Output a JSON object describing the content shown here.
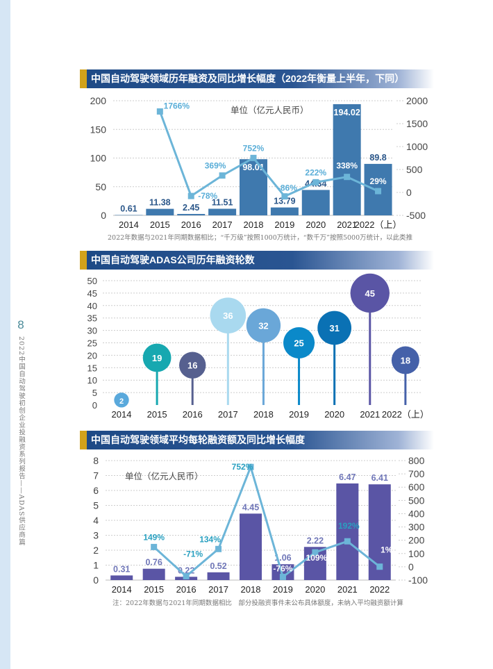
{
  "sidebar": {
    "page_number": "8",
    "report_title": "2022中国自动驾驶初创企业投融资系列报告——ADAS供应商篇"
  },
  "chart_data": [
    {
      "type": "bar+line",
      "title": "中国自动驾驶领域历年融资及同比增长幅度（2022年衡量上半年，下同）",
      "unit_label": "单位（亿元人民币）",
      "categories": [
        "2014",
        "2015",
        "2016",
        "2017",
        "2018",
        "2019",
        "2020",
        "2021",
        "2022（上）"
      ],
      "bar_values": [
        0.61,
        11.38,
        2.45,
        11.51,
        98.01,
        13.79,
        44.34,
        194.02,
        89.8
      ],
      "bar_labels": [
        "0.61",
        "11.38",
        "2.45",
        "11.51",
        "98.01",
        "13.79",
        "44.34",
        "194.02",
        "89.8"
      ],
      "line_values": [
        null,
        1766,
        -78,
        369,
        752,
        -86,
        222,
        338,
        29
      ],
      "line_labels": [
        "",
        "1766%",
        "-78%",
        "369%",
        "752%",
        "-86%",
        "222%",
        "338%",
        "29%"
      ],
      "ylim": [
        0,
        200
      ],
      "yticks": [
        "0",
        "50",
        "100",
        "150",
        "200"
      ],
      "y2lim": [
        -500,
        2000
      ],
      "y2ticks": [
        "-500",
        "0",
        "500",
        "1000",
        "1500",
        "2000"
      ],
      "grid": true,
      "colors": {
        "bar": "#3f79ae",
        "line": "#6cb5d8",
        "bar_label": "#2b578a",
        "line_label": "#5aaed8"
      },
      "footnote": "2022年数据与2021年同期数据相比；“千万级”按照1000万统计，“数千万”按照5000万统计，以此类推"
    },
    {
      "type": "lollipop",
      "title": "中国自动驾驶ADAS公司历年融资轮数",
      "categories": [
        "2014",
        "2015",
        "2016",
        "2017",
        "2018",
        "2019",
        "2020",
        "2021",
        "2022（上）"
      ],
      "values": [
        2,
        19,
        16,
        36,
        32,
        25,
        31,
        45,
        18
      ],
      "labels": [
        "2",
        "19",
        "16",
        "36",
        "32",
        "25",
        "31",
        "45",
        "18"
      ],
      "ylim": [
        0,
        50
      ],
      "yticks": [
        "0",
        "5",
        "10",
        "15",
        "20",
        "25",
        "30",
        "35",
        "40",
        "45",
        "50"
      ],
      "grid": true,
      "colors": [
        "#5aa9dc",
        "#17a8b0",
        "#56608f",
        "#a9d9ef",
        "#6aa7d8",
        "#0b89c9",
        "#0a71b4",
        "#5a55a5",
        "#4561a9"
      ]
    },
    {
      "type": "bar+line",
      "title": "中国自动驾驶领域平均每轮融资额及同比增长幅度",
      "unit_label": "单位（亿元人民币）",
      "categories": [
        "2014",
        "2015",
        "2016",
        "2017",
        "2018",
        "2019",
        "2020",
        "2021",
        "2022"
      ],
      "bar_values": [
        0.31,
        0.76,
        0.22,
        0.52,
        4.45,
        1.06,
        2.22,
        6.47,
        6.41
      ],
      "bar_labels": [
        "0.31",
        "0.76",
        "0.22",
        "0.52",
        "4.45",
        "1.06",
        "2.22",
        "6.47",
        "6.41"
      ],
      "line_values": [
        null,
        149,
        -71,
        134,
        752,
        -76,
        109,
        192,
        1
      ],
      "line_labels": [
        "",
        "149%",
        "-71%",
        "134%",
        "752%",
        "-76%",
        "109%",
        "192%",
        "1%"
      ],
      "ylim": [
        0,
        8
      ],
      "yticks": [
        "0",
        "1",
        "2",
        "3",
        "4",
        "5",
        "6",
        "7",
        "8"
      ],
      "y2lim": [
        -100,
        800
      ],
      "y2ticks": [
        "-100",
        "0",
        "100",
        "200",
        "300",
        "400",
        "500",
        "600",
        "700",
        "800"
      ],
      "grid": true,
      "colors": {
        "bar": "#5a55a5",
        "line": "#6cb5d8",
        "bar_label": "#7077b8",
        "line_label": "#2aa0c0"
      },
      "footnote": "注：2022年数据与2021年同期数据相比　部分投融资事件未公布具体额度，未纳入平均融资额计算"
    }
  ]
}
